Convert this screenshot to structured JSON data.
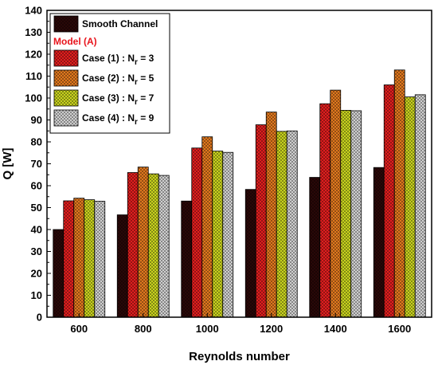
{
  "chart_data": {
    "type": "bar",
    "xlabel": "Reynolds number",
    "ylabel": "Q [W]",
    "ylim": [
      0,
      140
    ],
    "yticks": [
      0,
      10,
      20,
      30,
      40,
      50,
      60,
      70,
      80,
      90,
      100,
      110,
      120,
      130,
      140
    ],
    "categories": [
      "600",
      "800",
      "1000",
      "1200",
      "1400",
      "1600"
    ],
    "legend_group_label": "Model (A)",
    "legend_group_color": "#e8141c",
    "legend_position": "top-left",
    "series": [
      {
        "name": "Smooth Channel",
        "subscript": "",
        "suffix": "",
        "color": "#2a0808",
        "values": [
          40,
          46.7,
          53,
          58.3,
          63.8,
          68.3
        ]
      },
      {
        "name": "Case (1) : N",
        "subscript": "r",
        "suffix": " = 3",
        "color": "#e01e1e",
        "values": [
          53.1,
          66,
          77.2,
          87.8,
          97.4,
          106
        ]
      },
      {
        "name": "Case (2) : N",
        "subscript": "r",
        "suffix": " = 5",
        "color": "#e0781e",
        "values": [
          54.3,
          68.5,
          82.3,
          93.6,
          103.6,
          112.8
        ]
      },
      {
        "name": "Case (3) : N",
        "subscript": "r",
        "suffix": " = 7",
        "color": "#c8d21e",
        "values": [
          53.6,
          65.4,
          75.8,
          84.8,
          94.4,
          100.5
        ]
      },
      {
        "name": "Case (4) : N",
        "subscript": "r",
        "suffix": " = 9",
        "color": "#cfcfcf",
        "values": [
          52.9,
          64.7,
          75.2,
          85,
          94.2,
          101.5
        ]
      }
    ]
  }
}
